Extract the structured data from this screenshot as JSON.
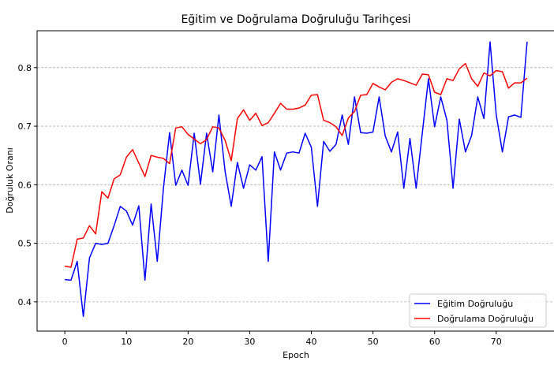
{
  "chart_data": {
    "type": "line",
    "title": "Eğitim ve Doğrulama Doğruluğu Tarihçesi",
    "xlabel": "Epoch",
    "ylabel": "Doğruluk Oranı",
    "xlim": [
      -4.5,
      79.5
    ],
    "ylim": [
      0.35,
      0.863
    ],
    "xticks": [
      0,
      10,
      20,
      30,
      40,
      50,
      60,
      70
    ],
    "yticks": [
      0.4,
      0.5,
      0.6,
      0.7,
      0.8
    ],
    "ytick_labels": [
      "0.4",
      "0.5",
      "0.6",
      "0.7",
      "0.8"
    ],
    "grid": "y-dashed",
    "legend": "lower-right",
    "x": [
      0,
      1,
      2,
      3,
      4,
      5,
      6,
      7,
      8,
      9,
      10,
      11,
      12,
      13,
      14,
      15,
      16,
      17,
      18,
      19,
      20,
      21,
      22,
      23,
      24,
      25,
      26,
      27,
      28,
      29,
      30,
      31,
      32,
      33,
      34,
      35,
      36,
      37,
      38,
      39,
      40,
      41,
      42,
      43,
      44,
      45,
      46,
      47,
      48,
      49,
      50,
      51,
      52,
      53,
      54,
      55,
      56,
      57,
      58,
      59,
      60,
      61,
      62,
      63,
      64,
      65,
      66,
      67,
      68,
      69,
      70,
      71,
      72,
      73,
      74,
      75
    ],
    "series": [
      {
        "name": "Eğitim Doğruluğu",
        "color": "#0000ff",
        "values": [
          0.438,
          0.437,
          0.469,
          0.375,
          0.475,
          0.5,
          0.498,
          0.5,
          0.53,
          0.563,
          0.555,
          0.531,
          0.564,
          0.437,
          0.567,
          0.469,
          0.594,
          0.689,
          0.599,
          0.625,
          0.599,
          0.688,
          0.601,
          0.688,
          0.622,
          0.719,
          0.623,
          0.563,
          0.638,
          0.594,
          0.634,
          0.625,
          0.648,
          0.469,
          0.656,
          0.625,
          0.654,
          0.656,
          0.654,
          0.688,
          0.664,
          0.563,
          0.674,
          0.657,
          0.669,
          0.719,
          0.669,
          0.75,
          0.689,
          0.688,
          0.69,
          0.75,
          0.683,
          0.656,
          0.69,
          0.594,
          0.679,
          0.594,
          0.688,
          0.781,
          0.699,
          0.75,
          0.71,
          0.594,
          0.712,
          0.656,
          0.684,
          0.75,
          0.713,
          0.844,
          0.719,
          0.656,
          0.716,
          0.719,
          0.715,
          0.844
        ]
      },
      {
        "name": "Doğrulama Doğruluğu",
        "color": "#ff0000",
        "values": [
          0.461,
          0.459,
          0.507,
          0.509,
          0.53,
          0.516,
          0.588,
          0.577,
          0.61,
          0.617,
          0.647,
          0.66,
          0.637,
          0.614,
          0.65,
          0.647,
          0.645,
          0.636,
          0.697,
          0.699,
          0.686,
          0.678,
          0.67,
          0.677,
          0.699,
          0.697,
          0.676,
          0.641,
          0.713,
          0.728,
          0.71,
          0.722,
          0.701,
          0.706,
          0.722,
          0.739,
          0.729,
          0.729,
          0.731,
          0.736,
          0.753,
          0.754,
          0.71,
          0.706,
          0.699,
          0.684,
          0.714,
          0.725,
          0.753,
          0.754,
          0.773,
          0.767,
          0.762,
          0.775,
          0.781,
          0.778,
          0.774,
          0.77,
          0.789,
          0.788,
          0.758,
          0.754,
          0.781,
          0.778,
          0.798,
          0.807,
          0.781,
          0.768,
          0.791,
          0.786,
          0.795,
          0.793,
          0.765,
          0.774,
          0.774,
          0.782
        ]
      }
    ]
  }
}
